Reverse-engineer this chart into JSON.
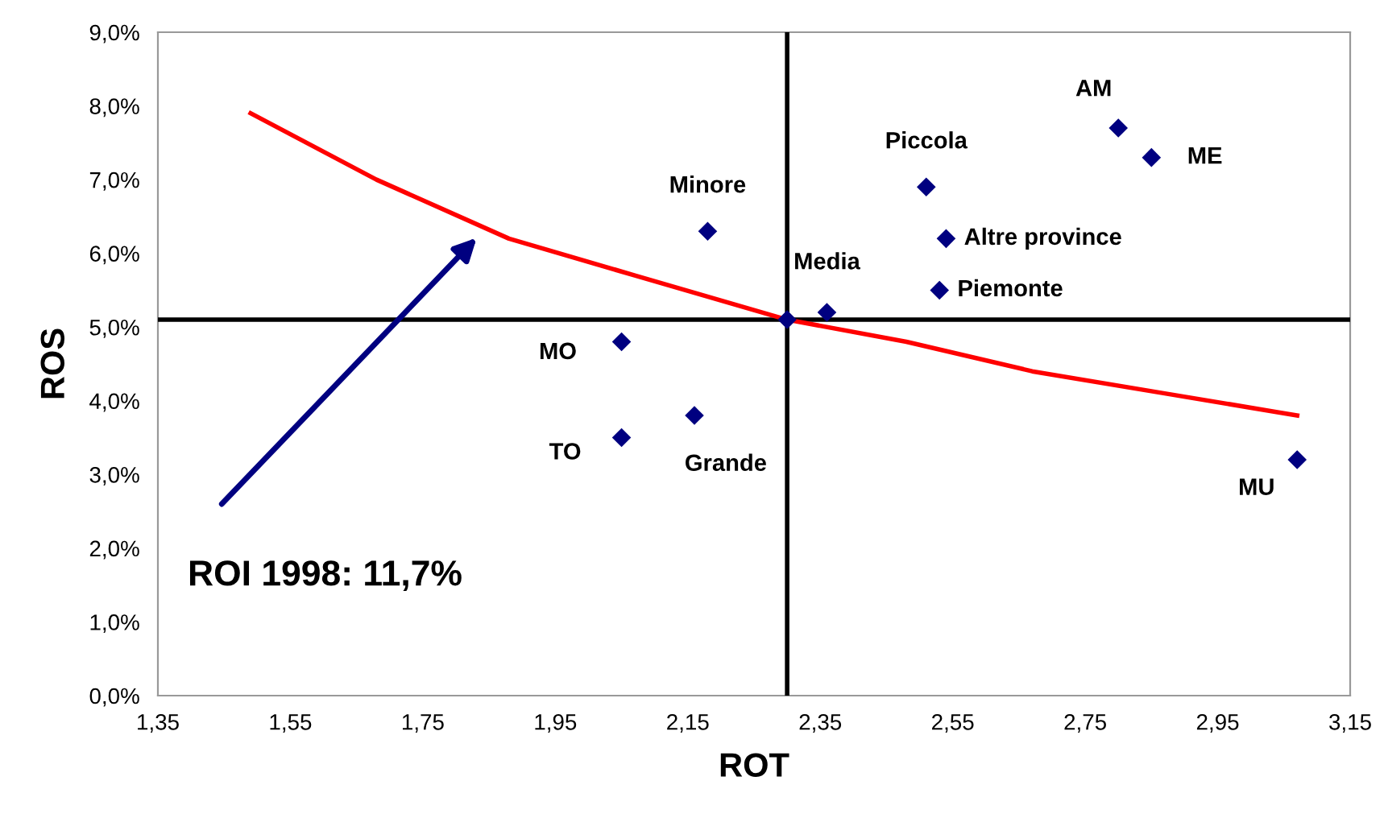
{
  "chart_data": {
    "type": "scatter",
    "xlabel": "ROT",
    "ylabel": "ROS",
    "xlim": [
      1.35,
      3.15
    ],
    "ylim": [
      0,
      9
    ],
    "xticks": [
      {
        "value": 1.35,
        "label": "1,35"
      },
      {
        "value": 1.55,
        "label": "1,55"
      },
      {
        "value": 1.75,
        "label": "1,75"
      },
      {
        "value": 1.95,
        "label": "1,95"
      },
      {
        "value": 2.15,
        "label": "2,15"
      },
      {
        "value": 2.35,
        "label": "2,35"
      },
      {
        "value": 2.55,
        "label": "2,55"
      },
      {
        "value": 2.75,
        "label": "2,75"
      },
      {
        "value": 2.95,
        "label": "2,95"
      },
      {
        "value": 3.15,
        "label": "3,15"
      }
    ],
    "yticks": [
      {
        "value": 0,
        "label": "0,0%"
      },
      {
        "value": 1,
        "label": "1,0%"
      },
      {
        "value": 2,
        "label": "2,0%"
      },
      {
        "value": 3,
        "label": "3,0%"
      },
      {
        "value": 4,
        "label": "4,0%"
      },
      {
        "value": 5,
        "label": "5,0%"
      },
      {
        "value": 6,
        "label": "6,0%"
      },
      {
        "value": 7,
        "label": "7,0%"
      },
      {
        "value": 8,
        "label": "8,0%"
      },
      {
        "value": 9,
        "label": "9,0%"
      }
    ],
    "grid": false,
    "legend": false,
    "series": [
      {
        "color": "#000080",
        "marker": "diamond",
        "x": [
          2.8,
          2.85,
          2.51,
          2.54,
          2.53,
          2.36,
          2.18,
          3.07,
          2.16,
          2.05,
          2.05,
          2.3
        ],
        "values": [
          7.7,
          7.3,
          6.9,
          6.2,
          5.5,
          5.2,
          6.3,
          3.2,
          3.8,
          4.8,
          3.5,
          5.1
        ],
        "value_labels": [
          "AM",
          "ME",
          "Piccola",
          "Altre province",
          "Piemonte",
          "Media",
          "Minore",
          "MU",
          "Grande",
          "MO",
          "TO",
          null
        ]
      },
      {
        "type": "line",
        "color": "#ff0000",
        "marker": "none",
        "line_style": "solid",
        "x": [
          1.49,
          1.68,
          1.88,
          2.07,
          2.3,
          2.48,
          2.67,
          2.87,
          3.07
        ],
        "values": [
          7.9,
          7.0,
          6.2,
          5.7,
          5.1,
          4.8,
          4.4,
          4.1,
          3.8
        ]
      }
    ],
    "ref_lines": [
      {
        "axis": "x",
        "value": 2.3,
        "color": "#000000"
      },
      {
        "axis": "y",
        "value": 5.1,
        "color": "#000000"
      }
    ],
    "annotations": [
      "ROI 1998: 11,7%"
    ]
  }
}
